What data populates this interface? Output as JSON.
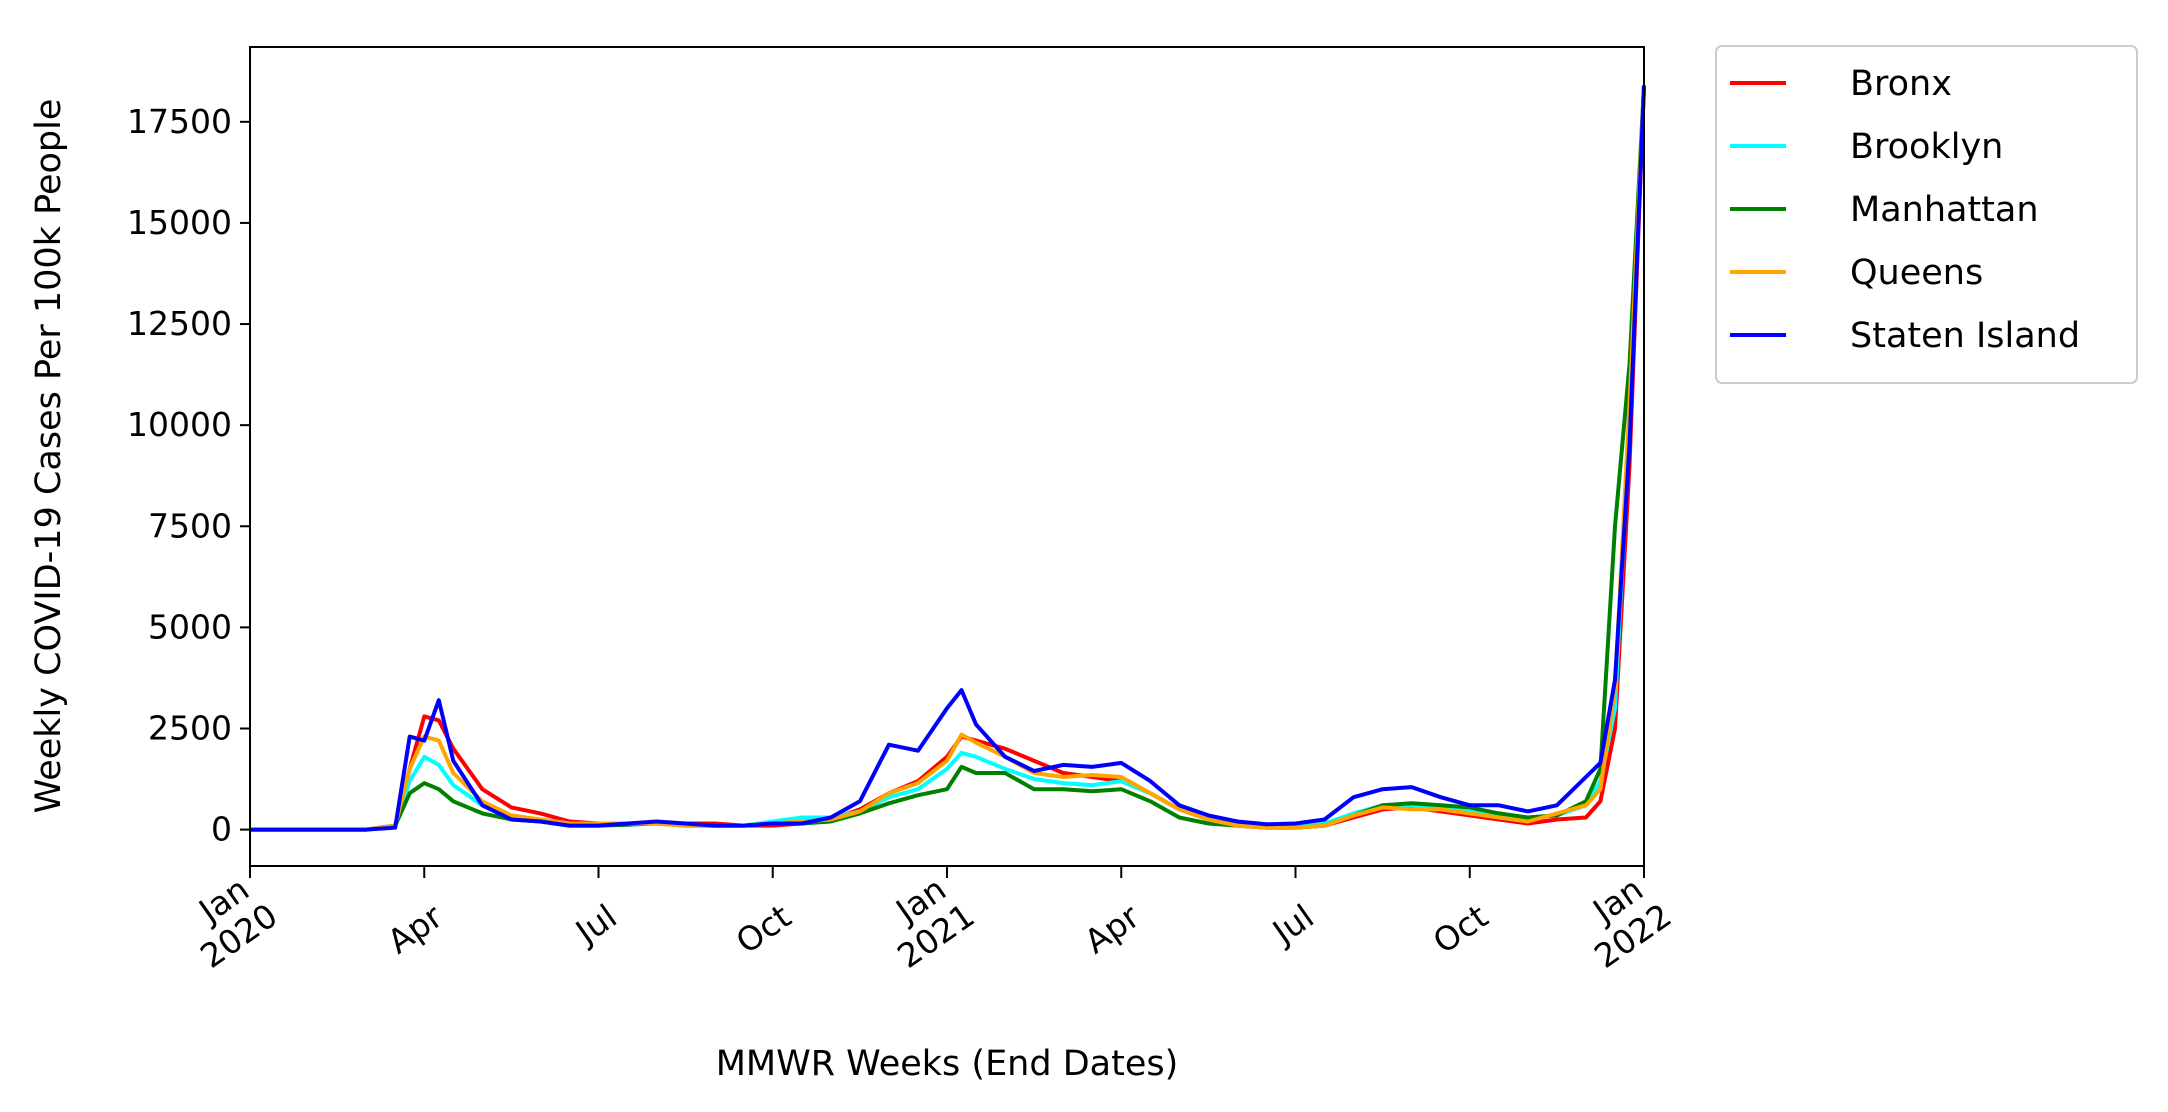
{
  "chart_data": {
    "type": "line",
    "xlabel": "MMWR Weeks (End Dates)",
    "ylabel": "Weekly COVID-19 Cases Per 100k People",
    "xlim": [
      0,
      24
    ],
    "ylim": [
      -900,
      19350
    ],
    "xticks": [
      {
        "value": 0,
        "label": "Jan\n2020"
      },
      {
        "value": 3,
        "label": "Apr"
      },
      {
        "value": 6,
        "label": "Jul"
      },
      {
        "value": 9,
        "label": "Oct"
      },
      {
        "value": 12,
        "label": "Jan\n2021"
      },
      {
        "value": 15,
        "label": "Apr"
      },
      {
        "value": 18,
        "label": "Jul"
      },
      {
        "value": 21,
        "label": "Oct"
      },
      {
        "value": 24,
        "label": "Jan\n2022"
      }
    ],
    "yticks": [
      0,
      2500,
      5000,
      7500,
      10000,
      12500,
      15000,
      17500
    ],
    "legend": "outside-upper-right",
    "x": [
      0,
      0.5,
      1,
      1.5,
      2,
      2.5,
      2.75,
      3,
      3.25,
      3.5,
      4,
      4.5,
      5,
      5.5,
      6,
      6.5,
      7,
      7.5,
      8,
      8.5,
      9,
      9.5,
      10,
      10.5,
      11,
      11.5,
      12,
      12.25,
      12.5,
      13,
      13.5,
      14,
      14.5,
      15,
      15.5,
      16,
      16.5,
      17,
      17.5,
      18,
      18.5,
      19,
      19.5,
      20,
      20.5,
      21,
      21.5,
      22,
      22.5,
      23,
      23.25,
      23.5,
      23.75,
      24
    ],
    "series": [
      {
        "name": "Bronx",
        "color": "#ff0000",
        "values": [
          0,
          0,
          0,
          0,
          0,
          100,
          1500,
          2800,
          2700,
          2000,
          1000,
          550,
          400,
          200,
          150,
          150,
          150,
          150,
          150,
          100,
          100,
          150,
          250,
          500,
          900,
          1200,
          1800,
          2300,
          2200,
          2000,
          1700,
          1400,
          1300,
          1200,
          900,
          500,
          250,
          100,
          50,
          50,
          100,
          300,
          500,
          550,
          450,
          350,
          250,
          150,
          250,
          300,
          700,
          2500,
          9000,
          18400
        ]
      },
      {
        "name": "Brooklyn",
        "color": "#00ffff",
        "values": [
          0,
          0,
          0,
          0,
          0,
          100,
          1200,
          1800,
          1600,
          1100,
          600,
          300,
          250,
          150,
          150,
          150,
          150,
          100,
          100,
          100,
          200,
          300,
          300,
          450,
          800,
          1000,
          1500,
          1900,
          1800,
          1500,
          1250,
          1150,
          1100,
          1200,
          900,
          500,
          250,
          100,
          80,
          80,
          150,
          400,
          600,
          600,
          550,
          450,
          400,
          300,
          350,
          600,
          1200,
          3000,
          10000,
          18400
        ]
      },
      {
        "name": "Manhattan",
        "color": "#008000",
        "values": [
          0,
          0,
          0,
          0,
          0,
          100,
          900,
          1150,
          1000,
          700,
          400,
          250,
          200,
          100,
          100,
          120,
          150,
          100,
          100,
          100,
          150,
          150,
          200,
          400,
          650,
          850,
          1000,
          1550,
          1400,
          1400,
          1000,
          1000,
          950,
          1000,
          700,
          300,
          150,
          100,
          50,
          50,
          100,
          350,
          600,
          650,
          600,
          550,
          400,
          300,
          350,
          700,
          1500,
          7500,
          11500,
          18400
        ]
      },
      {
        "name": "Queens",
        "color": "#ffa500",
        "values": [
          0,
          0,
          0,
          0,
          0,
          100,
          1500,
          2300,
          2200,
          1400,
          700,
          350,
          250,
          150,
          150,
          150,
          150,
          100,
          100,
          100,
          150,
          200,
          250,
          450,
          900,
          1150,
          1700,
          2350,
          2150,
          1800,
          1400,
          1300,
          1350,
          1300,
          900,
          500,
          250,
          100,
          50,
          50,
          100,
          350,
          550,
          500,
          500,
          400,
          300,
          200,
          400,
          600,
          1000,
          3500,
          10500,
          18400
        ]
      },
      {
        "name": "Staten Island",
        "color": "#0000ff",
        "values": [
          0,
          0,
          0,
          0,
          0,
          50,
          2300,
          2200,
          3200,
          1700,
          600,
          250,
          200,
          100,
          100,
          150,
          200,
          150,
          100,
          100,
          150,
          150,
          300,
          700,
          2100,
          1950,
          3000,
          3450,
          2600,
          1800,
          1450,
          1600,
          1550,
          1650,
          1200,
          600,
          350,
          200,
          130,
          150,
          250,
          800,
          1000,
          1050,
          800,
          600,
          600,
          450,
          600,
          1300,
          1650,
          3700,
          9500,
          18400
        ]
      }
    ]
  }
}
